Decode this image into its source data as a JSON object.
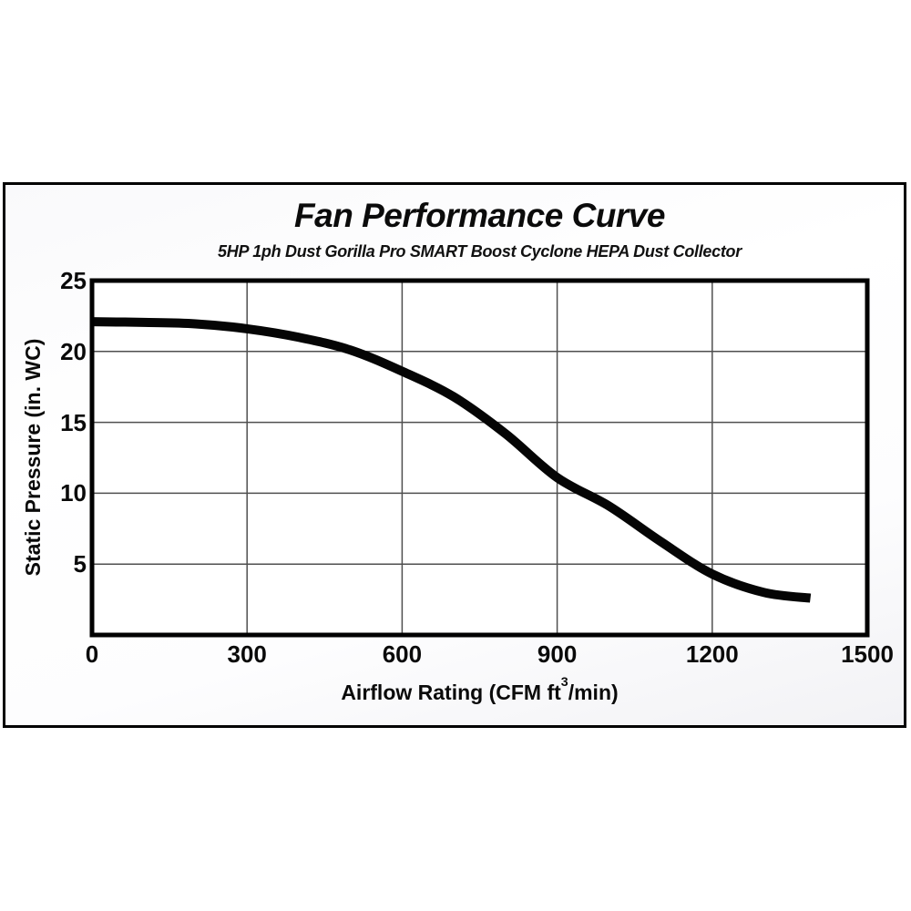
{
  "chart_data": {
    "type": "line",
    "title": "Fan Performance Curve",
    "subtitle": "5HP 1ph Dust Gorilla Pro SMART Boost Cyclone HEPA Dust Collector",
    "xlabel": "Airflow Rating (CFM ft³/min)",
    "xlabel_parts": {
      "prefix": "Airflow Rating (CFM ft",
      "sup": "3",
      "suffix": "/min)"
    },
    "ylabel": "Static Pressure (in. WC)",
    "xlim": [
      0,
      1500
    ],
    "ylim": [
      0,
      25
    ],
    "x_ticks": [
      0,
      300,
      600,
      900,
      1200,
      1500
    ],
    "y_ticks": [
      25,
      20,
      15,
      10,
      5
    ],
    "grid": true,
    "legend": false,
    "series": [
      {
        "name": "fan-performance-curve",
        "x": [
          0,
          100,
          200,
          300,
          400,
          500,
          600,
          700,
          800,
          900,
          1000,
          1100,
          1200,
          1300,
          1390
        ],
        "y": [
          22.1,
          22.05,
          21.95,
          21.6,
          21.0,
          20.1,
          18.6,
          16.8,
          14.2,
          11.1,
          9.1,
          6.6,
          4.3,
          3.0,
          2.6
        ]
      }
    ],
    "colors": {
      "curve": "#050505",
      "grid": "#4f4f4f",
      "frame": "#000000",
      "text": "#0a0a0a",
      "plot_background": "#ffffff"
    }
  }
}
